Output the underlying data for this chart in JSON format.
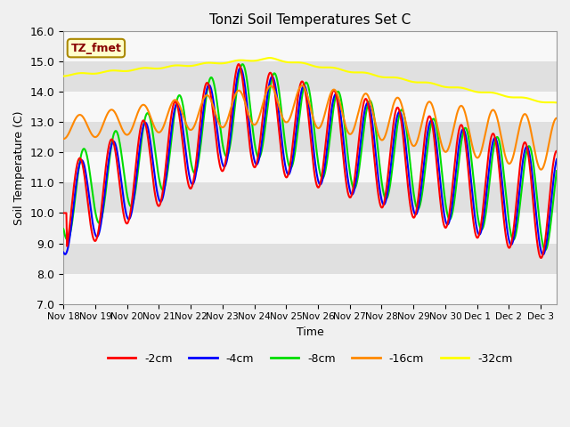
{
  "title": "Tonzi Soil Temperatures Set C",
  "xlabel": "Time",
  "ylabel": "Soil Temperature (C)",
  "ylim": [
    7.0,
    16.0
  ],
  "yticks": [
    7.0,
    8.0,
    9.0,
    10.0,
    11.0,
    12.0,
    13.0,
    14.0,
    15.0,
    16.0
  ],
  "line_colors": {
    "-2cm": "#ff0000",
    "-4cm": "#0000ff",
    "-8cm": "#00dd00",
    "-16cm": "#ff8800",
    "-32cm": "#ffff00"
  },
  "annotation_box": "TZ_fmet",
  "background_color": "#f0f0f0",
  "band_colors": [
    "#f8f8f8",
    "#e0e0e0"
  ],
  "band_ranges": [
    [
      7.0,
      8.0
    ],
    [
      8.0,
      9.0
    ],
    [
      9.0,
      10.0
    ],
    [
      10.0,
      11.0
    ],
    [
      11.0,
      12.0
    ],
    [
      12.0,
      13.0
    ],
    [
      13.0,
      14.0
    ],
    [
      14.0,
      15.0
    ],
    [
      15.0,
      16.0
    ]
  ],
  "num_days": 15.5,
  "points_per_day": 96
}
